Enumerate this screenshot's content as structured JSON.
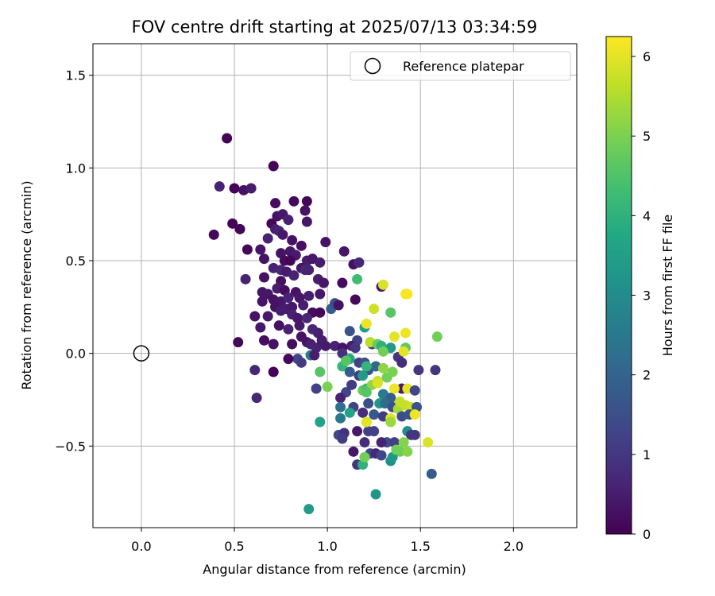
{
  "chart_data": {
    "type": "scatter",
    "title": "FOV centre drift starting at 2025/07/13 03:34:59",
    "xlabel": "Angular distance from reference (arcmin)",
    "ylabel": "Rotation from reference (arcmin)",
    "xlim": [
      -0.26,
      2.34
    ],
    "ylim": [
      -0.94,
      1.67
    ],
    "xticks": [
      0.0,
      0.5,
      1.0,
      1.5,
      2.0
    ],
    "yticks": [
      -0.5,
      0.0,
      0.5,
      1.0,
      1.5
    ],
    "xtick_labels": [
      "0.0",
      "0.5",
      "1.0",
      "1.5",
      "2.0"
    ],
    "ytick_labels": [
      "−0.5",
      "0.0",
      "0.5",
      "1.0",
      "1.5"
    ],
    "grid": true,
    "legend": {
      "entries": [
        "Reference platepar"
      ],
      "location": "upper right"
    },
    "reference_point": {
      "x": 0.0,
      "y": 0.0
    },
    "colorbar": {
      "label": "Hours from first FF file",
      "range": [
        0,
        6.25
      ],
      "ticks": [
        0,
        1,
        2,
        3,
        4,
        5,
        6
      ],
      "tick_labels": [
        "0",
        "1",
        "2",
        "3",
        "4",
        "5",
        "6"
      ],
      "colormap": "viridis"
    },
    "points": [
      {
        "x": 0.46,
        "y": 1.16,
        "h": 0.05
      },
      {
        "x": 0.71,
        "y": 1.01,
        "h": 0.05
      },
      {
        "x": 0.42,
        "y": 0.9,
        "h": 0.6
      },
      {
        "x": 0.5,
        "y": 0.89,
        "h": 0.05
      },
      {
        "x": 0.55,
        "y": 0.88,
        "h": 0.3
      },
      {
        "x": 0.59,
        "y": 0.89,
        "h": 0.5
      },
      {
        "x": 0.72,
        "y": 0.81,
        "h": 0.2
      },
      {
        "x": 0.82,
        "y": 0.82,
        "h": 0.15
      },
      {
        "x": 0.89,
        "y": 0.82,
        "h": 0.1
      },
      {
        "x": 0.88,
        "y": 0.77,
        "h": 0.3
      },
      {
        "x": 0.73,
        "y": 0.74,
        "h": 0.3
      },
      {
        "x": 0.76,
        "y": 0.75,
        "h": 0.4
      },
      {
        "x": 0.79,
        "y": 0.72,
        "h": 0.55
      },
      {
        "x": 0.7,
        "y": 0.7,
        "h": 0.1
      },
      {
        "x": 0.89,
        "y": 0.71,
        "h": 0.4
      },
      {
        "x": 0.49,
        "y": 0.7,
        "h": 0.05
      },
      {
        "x": 0.53,
        "y": 0.67,
        "h": 0.1
      },
      {
        "x": 0.39,
        "y": 0.64,
        "h": 0.1
      },
      {
        "x": 0.72,
        "y": 0.67,
        "h": 0.5
      },
      {
        "x": 0.74,
        "y": 0.66,
        "h": 0.6
      },
      {
        "x": 0.76,
        "y": 0.64,
        "h": 0.4
      },
      {
        "x": 0.68,
        "y": 0.62,
        "h": 0.6
      },
      {
        "x": 0.81,
        "y": 0.61,
        "h": 0.3
      },
      {
        "x": 0.86,
        "y": 0.58,
        "h": 0.25
      },
      {
        "x": 0.99,
        "y": 0.6,
        "h": 0.3
      },
      {
        "x": 0.57,
        "y": 0.56,
        "h": 0.1
      },
      {
        "x": 0.64,
        "y": 0.56,
        "h": 0.35
      },
      {
        "x": 0.8,
        "y": 0.55,
        "h": 0.4
      },
      {
        "x": 0.83,
        "y": 0.53,
        "h": 0.45
      },
      {
        "x": 0.66,
        "y": 0.51,
        "h": 0.3
      },
      {
        "x": 0.75,
        "y": 0.54,
        "h": 0.3
      },
      {
        "x": 0.77,
        "y": 0.5,
        "h": 0.2
      },
      {
        "x": 0.8,
        "y": 0.5,
        "h": 0.05
      },
      {
        "x": 0.89,
        "y": 0.5,
        "h": 0.5
      },
      {
        "x": 0.92,
        "y": 0.51,
        "h": 0.4
      },
      {
        "x": 0.96,
        "y": 0.49,
        "h": 0.5
      },
      {
        "x": 1.09,
        "y": 0.55,
        "h": 0.4
      },
      {
        "x": 1.14,
        "y": 0.48,
        "h": 0.3
      },
      {
        "x": 1.17,
        "y": 0.49,
        "h": 0.7
      },
      {
        "x": 0.71,
        "y": 0.46,
        "h": 0.6
      },
      {
        "x": 0.75,
        "y": 0.45,
        "h": 0.7
      },
      {
        "x": 0.78,
        "y": 0.44,
        "h": 0.45
      },
      {
        "x": 0.82,
        "y": 0.42,
        "h": 0.6
      },
      {
        "x": 0.86,
        "y": 0.46,
        "h": 0.35
      },
      {
        "x": 0.88,
        "y": 0.45,
        "h": 0.7
      },
      {
        "x": 0.9,
        "y": 0.45,
        "h": 0.6
      },
      {
        "x": 0.56,
        "y": 0.4,
        "h": 0.6
      },
      {
        "x": 0.66,
        "y": 0.41,
        "h": 0.3
      },
      {
        "x": 0.75,
        "y": 0.39,
        "h": 0.25
      },
      {
        "x": 0.95,
        "y": 0.4,
        "h": 0.5
      },
      {
        "x": 0.98,
        "y": 0.38,
        "h": 0.4
      },
      {
        "x": 1.08,
        "y": 0.38,
        "h": 0.2
      },
      {
        "x": 0.65,
        "y": 0.33,
        "h": 0.35
      },
      {
        "x": 0.68,
        "y": 0.32,
        "h": 0.4
      },
      {
        "x": 0.73,
        "y": 0.35,
        "h": 0.5
      },
      {
        "x": 0.77,
        "y": 0.34,
        "h": 0.2
      },
      {
        "x": 0.83,
        "y": 0.33,
        "h": 0.3
      },
      {
        "x": 0.65,
        "y": 0.28,
        "h": 0.35
      },
      {
        "x": 0.71,
        "y": 0.29,
        "h": 0.3
      },
      {
        "x": 0.75,
        "y": 0.28,
        "h": 0.4
      },
      {
        "x": 0.79,
        "y": 0.3,
        "h": 0.6
      },
      {
        "x": 0.85,
        "y": 0.3,
        "h": 0.4
      },
      {
        "x": 0.9,
        "y": 0.31,
        "h": 0.5
      },
      {
        "x": 0.96,
        "y": 0.32,
        "h": 0.4
      },
      {
        "x": 1.15,
        "y": 0.29,
        "h": 0.15
      },
      {
        "x": 1.29,
        "y": 0.36,
        "h": 0.4
      },
      {
        "x": 0.72,
        "y": 0.25,
        "h": 0.3
      },
      {
        "x": 0.78,
        "y": 0.24,
        "h": 0.5
      },
      {
        "x": 0.81,
        "y": 0.25,
        "h": 0.4
      },
      {
        "x": 0.87,
        "y": 0.26,
        "h": 0.55
      },
      {
        "x": 0.92,
        "y": 0.22,
        "h": 0.2
      },
      {
        "x": 0.96,
        "y": 0.22,
        "h": 0.1
      },
      {
        "x": 1.02,
        "y": 0.24,
        "h": 1.8
      },
      {
        "x": 1.04,
        "y": 0.27,
        "h": 1.5
      },
      {
        "x": 1.06,
        "y": 0.26,
        "h": 0.3
      },
      {
        "x": 0.61,
        "y": 0.2,
        "h": 0.3
      },
      {
        "x": 0.68,
        "y": 0.2,
        "h": 0.4
      },
      {
        "x": 0.75,
        "y": 0.23,
        "h": 0.5
      },
      {
        "x": 0.81,
        "y": 0.21,
        "h": 0.55
      },
      {
        "x": 0.84,
        "y": 0.19,
        "h": 0.4
      },
      {
        "x": 0.89,
        "y": 0.19,
        "h": 0.7
      },
      {
        "x": 0.64,
        "y": 0.14,
        "h": 0.4
      },
      {
        "x": 0.74,
        "y": 0.15,
        "h": 0.3
      },
      {
        "x": 0.79,
        "y": 0.13,
        "h": 0.6
      },
      {
        "x": 0.85,
        "y": 0.15,
        "h": 0.4
      },
      {
        "x": 0.92,
        "y": 0.13,
        "h": 0.7
      },
      {
        "x": 0.95,
        "y": 0.11,
        "h": 0.55
      },
      {
        "x": 0.86,
        "y": 0.09,
        "h": 0.3
      },
      {
        "x": 0.89,
        "y": 0.06,
        "h": 0.35
      },
      {
        "x": 0.52,
        "y": 0.06,
        "h": 0.15
      },
      {
        "x": 0.66,
        "y": 0.07,
        "h": 0.2
      },
      {
        "x": 0.71,
        "y": 0.05,
        "h": 0.3
      },
      {
        "x": 0.81,
        "y": 0.05,
        "h": 0.2
      },
      {
        "x": 0.91,
        "y": 0.05,
        "h": 0.55
      },
      {
        "x": 0.94,
        "y": 0.03,
        "h": 0.6
      },
      {
        "x": 0.97,
        "y": 0.07,
        "h": 0.5
      },
      {
        "x": 0.99,
        "y": 0.04,
        "h": 0.45
      },
      {
        "x": 1.04,
        "y": 0.04,
        "h": 0.6
      },
      {
        "x": 1.12,
        "y": 0.12,
        "h": 1.6
      },
      {
        "x": 1.16,
        "y": 0.07,
        "h": 1.2
      },
      {
        "x": 1.2,
        "y": 0.14,
        "h": 3.5
      },
      {
        "x": 1.13,
        "y": 0.04,
        "h": 0.5
      },
      {
        "x": 1.08,
        "y": 0.03,
        "h": 0.3
      },
      {
        "x": 0.84,
        "y": -0.03,
        "h": 1.4
      },
      {
        "x": 0.86,
        "y": -0.05,
        "h": 1.1
      },
      {
        "x": 0.91,
        "y": -0.01,
        "h": 2.6
      },
      {
        "x": 0.93,
        "y": -0.01,
        "h": 0.5
      },
      {
        "x": 0.79,
        "y": -0.03,
        "h": 0.1
      },
      {
        "x": 1.08,
        "y": 0.0,
        "h": 0.9
      },
      {
        "x": 1.12,
        "y": -0.03,
        "h": 3.7
      },
      {
        "x": 1.15,
        "y": 0.03,
        "h": 1.0
      },
      {
        "x": 1.17,
        "y": -0.05,
        "h": 1.2
      },
      {
        "x": 1.2,
        "y": -0.05,
        "h": 1.5
      },
      {
        "x": 1.24,
        "y": 0.05,
        "h": 1.0
      },
      {
        "x": 0.71,
        "y": -0.1,
        "h": 0.05
      },
      {
        "x": 0.61,
        "y": -0.09,
        "h": 0.7
      },
      {
        "x": 0.62,
        "y": -0.24,
        "h": 0.7
      },
      {
        "x": 0.96,
        "y": -0.1,
        "h": 4.6
      },
      {
        "x": 1.08,
        "y": -0.07,
        "h": 4.1
      },
      {
        "x": 1.12,
        "y": -0.1,
        "h": 1.8
      },
      {
        "x": 1.17,
        "y": -0.12,
        "h": 1.1
      },
      {
        "x": 1.22,
        "y": -0.09,
        "h": 1.6
      },
      {
        "x": 1.26,
        "y": -0.07,
        "h": 2.1
      },
      {
        "x": 1.3,
        "y": -0.08,
        "h": 5.2
      },
      {
        "x": 1.32,
        "y": -0.13,
        "h": 4.9
      },
      {
        "x": 1.35,
        "y": -0.1,
        "h": 5.0
      },
      {
        "x": 1.38,
        "y": -0.02,
        "h": 1.0
      },
      {
        "x": 1.4,
        "y": -0.05,
        "h": 0.8
      },
      {
        "x": 1.42,
        "y": 0.03,
        "h": 4.7
      },
      {
        "x": 1.49,
        "y": -0.09,
        "h": 1.0
      },
      {
        "x": 1.58,
        "y": -0.09,
        "h": 1.0
      },
      {
        "x": 0.94,
        "y": -0.19,
        "h": 1.2
      },
      {
        "x": 1.0,
        "y": -0.18,
        "h": 5.0
      },
      {
        "x": 1.1,
        "y": -0.21,
        "h": 1.3
      },
      {
        "x": 1.13,
        "y": -0.17,
        "h": 1.1
      },
      {
        "x": 1.19,
        "y": -0.2,
        "h": 4.8
      },
      {
        "x": 1.21,
        "y": -0.19,
        "h": 4.3
      },
      {
        "x": 1.24,
        "y": -0.17,
        "h": 5.2
      },
      {
        "x": 1.27,
        "y": -0.15,
        "h": 5.6
      },
      {
        "x": 1.3,
        "y": -0.22,
        "h": 2.6
      },
      {
        "x": 1.34,
        "y": -0.24,
        "h": 1.8
      },
      {
        "x": 1.4,
        "y": -0.19,
        "h": 0.5
      },
      {
        "x": 1.43,
        "y": -0.19,
        "h": 6.0
      },
      {
        "x": 1.47,
        "y": -0.2,
        "h": 1.3
      },
      {
        "x": 1.07,
        "y": -0.24,
        "h": 0.6
      },
      {
        "x": 1.07,
        "y": -0.29,
        "h": 2.3
      },
      {
        "x": 1.14,
        "y": -0.29,
        "h": 1.2
      },
      {
        "x": 1.22,
        "y": -0.27,
        "h": 1.5
      },
      {
        "x": 1.28,
        "y": -0.27,
        "h": 3.3
      },
      {
        "x": 1.31,
        "y": -0.27,
        "h": 2.2
      },
      {
        "x": 1.35,
        "y": -0.29,
        "h": 1.5
      },
      {
        "x": 1.38,
        "y": -0.3,
        "h": 5.4
      },
      {
        "x": 1.42,
        "y": -0.28,
        "h": 5.7
      },
      {
        "x": 1.45,
        "y": -0.29,
        "h": 5.8
      },
      {
        "x": 1.48,
        "y": -0.29,
        "h": 1.6
      },
      {
        "x": 1.07,
        "y": -0.35,
        "h": 2.5
      },
      {
        "x": 1.12,
        "y": -0.32,
        "h": 3.6
      },
      {
        "x": 1.19,
        "y": -0.32,
        "h": 0.8
      },
      {
        "x": 1.25,
        "y": -0.33,
        "h": 1.7
      },
      {
        "x": 1.3,
        "y": -0.34,
        "h": 1.1
      },
      {
        "x": 1.34,
        "y": -0.35,
        "h": 6.0
      },
      {
        "x": 1.4,
        "y": -0.34,
        "h": 1.5
      },
      {
        "x": 1.44,
        "y": -0.33,
        "h": 1.6
      },
      {
        "x": 1.47,
        "y": -0.33,
        "h": 6.1
      },
      {
        "x": 0.96,
        "y": -0.37,
        "h": 3.6
      },
      {
        "x": 1.21,
        "y": -0.37,
        "h": 5.6
      },
      {
        "x": 1.34,
        "y": -0.37,
        "h": 5.3
      },
      {
        "x": 1.43,
        "y": -0.42,
        "h": 3.0
      },
      {
        "x": 1.06,
        "y": -0.44,
        "h": 1.4
      },
      {
        "x": 1.09,
        "y": -0.43,
        "h": 0.9
      },
      {
        "x": 1.16,
        "y": -0.42,
        "h": 0.4
      },
      {
        "x": 1.22,
        "y": -0.42,
        "h": 1.2
      },
      {
        "x": 1.25,
        "y": -0.42,
        "h": 1.2
      },
      {
        "x": 1.32,
        "y": -0.48,
        "h": 1.5
      },
      {
        "x": 1.36,
        "y": -0.48,
        "h": 1.2
      },
      {
        "x": 1.41,
        "y": -0.48,
        "h": 5.1
      },
      {
        "x": 1.45,
        "y": -0.44,
        "h": 1.0
      },
      {
        "x": 1.47,
        "y": -0.44,
        "h": 1.0
      },
      {
        "x": 1.54,
        "y": -0.48,
        "h": 5.9
      },
      {
        "x": 1.08,
        "y": -0.46,
        "h": 1.1
      },
      {
        "x": 1.29,
        "y": -0.48,
        "h": 0.6
      },
      {
        "x": 1.2,
        "y": -0.48,
        "h": 0.8
      },
      {
        "x": 1.14,
        "y": -0.53,
        "h": 0.4
      },
      {
        "x": 1.23,
        "y": -0.54,
        "h": 1.3
      },
      {
        "x": 1.26,
        "y": -0.54,
        "h": 0.7
      },
      {
        "x": 1.29,
        "y": -0.55,
        "h": 1.3
      },
      {
        "x": 1.39,
        "y": -0.53,
        "h": 4.8
      },
      {
        "x": 1.43,
        "y": -0.53,
        "h": 5.1
      },
      {
        "x": 1.16,
        "y": -0.6,
        "h": 1.0
      },
      {
        "x": 1.19,
        "y": -0.6,
        "h": 4.0
      },
      {
        "x": 1.2,
        "y": -0.56,
        "h": 4.9
      },
      {
        "x": 1.34,
        "y": -0.58,
        "h": 3.1
      },
      {
        "x": 1.35,
        "y": -0.56,
        "h": 3.3
      },
      {
        "x": 1.56,
        "y": -0.65,
        "h": 1.8
      },
      {
        "x": 1.26,
        "y": -0.76,
        "h": 3.3
      },
      {
        "x": 0.9,
        "y": -0.84,
        "h": 3.4
      },
      {
        "x": 1.16,
        "y": 0.4,
        "h": 4.3
      },
      {
        "x": 1.3,
        "y": 0.37,
        "h": 5.9
      },
      {
        "x": 1.42,
        "y": 0.32,
        "h": 6.2
      },
      {
        "x": 1.43,
        "y": 0.32,
        "h": 6.2
      },
      {
        "x": 1.25,
        "y": 0.24,
        "h": 5.8
      },
      {
        "x": 1.34,
        "y": 0.22,
        "h": 4.6
      },
      {
        "x": 1.21,
        "y": 0.16,
        "h": 6.1
      },
      {
        "x": 1.42,
        "y": 0.11,
        "h": 6.1
      },
      {
        "x": 1.36,
        "y": 0.09,
        "h": 6.0
      },
      {
        "x": 1.59,
        "y": 0.09,
        "h": 4.9
      },
      {
        "x": 1.23,
        "y": 0.06,
        "h": 5.6
      },
      {
        "x": 1.27,
        "y": 0.05,
        "h": 4.8
      },
      {
        "x": 1.29,
        "y": 0.04,
        "h": 4.0
      },
      {
        "x": 1.34,
        "y": 0.03,
        "h": 3.4
      },
      {
        "x": 1.41,
        "y": 0.01,
        "h": 6.0
      },
      {
        "x": 1.3,
        "y": 0.01,
        "h": 4.9
      },
      {
        "x": 1.1,
        "y": -0.04,
        "h": 4.6
      },
      {
        "x": 1.21,
        "y": -0.07,
        "h": 4.1
      },
      {
        "x": 1.19,
        "y": -0.12,
        "h": 3.4
      },
      {
        "x": 1.27,
        "y": -0.16,
        "h": 5.9
      },
      {
        "x": 1.36,
        "y": -0.19,
        "h": 6.1
      },
      {
        "x": 1.21,
        "y": -0.21,
        "h": 4.6
      },
      {
        "x": 1.39,
        "y": -0.26,
        "h": 5.7
      },
      {
        "x": 1.21,
        "y": -0.37,
        "h": 6.0
      },
      {
        "x": 1.37,
        "y": -0.52,
        "h": 4.9
      }
    ]
  }
}
